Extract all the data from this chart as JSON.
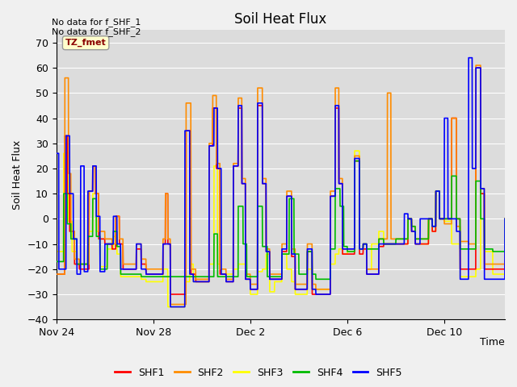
{
  "title": "Soil Heat Flux",
  "ylabel": "Soil Heat Flux",
  "xlabel": "Time",
  "ylim": [
    -40,
    75
  ],
  "yticks": [
    -40,
    -30,
    -20,
    -10,
    0,
    10,
    20,
    30,
    40,
    50,
    60,
    70
  ],
  "annotation_top": "No data for f_SHF_1\nNo data for f_SHF_2",
  "tz_label": "TZ_fmet",
  "colors": {
    "SHF1": "#FF0000",
    "SHF2": "#FF8C00",
    "SHF3": "#FFFF00",
    "SHF4": "#00BB00",
    "SHF5": "#0000FF"
  },
  "fig_bg": "#F0F0F0",
  "plot_bg": "#DCDCDC",
  "tick_labels": [
    "Nov 24",
    "Nov 28",
    "Dec 2",
    "Dec 6",
    "Dec 10"
  ],
  "tick_positions": [
    0,
    4,
    8,
    12,
    16
  ],
  "n_days": 18.5
}
